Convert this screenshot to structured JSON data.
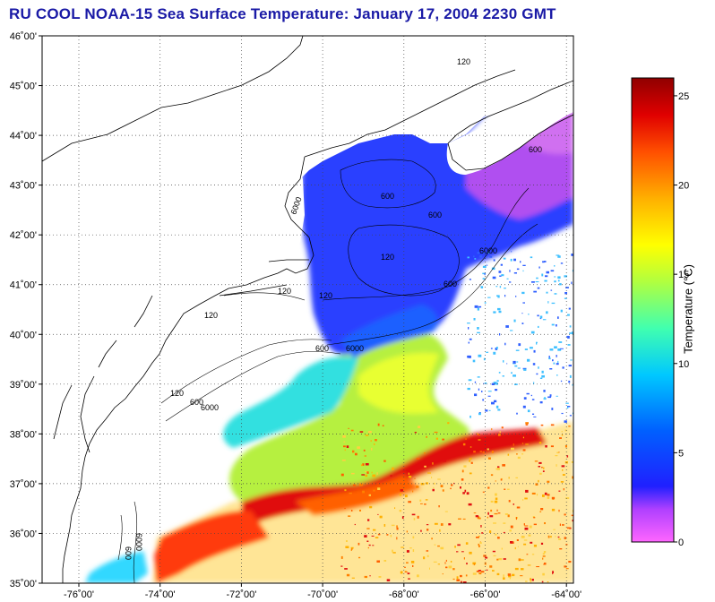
{
  "title": "RU COOL  NOAA-15  Sea Surface Temperature:  January 17, 2004 2230 GMT",
  "lat_labels": [
    "46˚00'",
    "45˚00'",
    "44˚00'",
    "43˚00'",
    "42˚00'",
    "41˚00'",
    "40˚00'",
    "39˚00'",
    "38˚00'",
    "37˚00'",
    "36˚00'",
    "35˚00'"
  ],
  "lon_labels": [
    "-76˚00'",
    "-74˚00'",
    "-72˚00'",
    "-70˚00'",
    "-68˚00'",
    "-66˚00'",
    "-64˚00'"
  ],
  "colorbar": {
    "title": "Temperature (°C)",
    "ticks": [
      "25",
      "20",
      "15",
      "10",
      "5",
      "0"
    ]
  },
  "contour_labels": {
    "c120": "120",
    "c600": "600",
    "c6000": "6000"
  },
  "colors": {
    "title": "#1a1aa6",
    "cold": "#ff44ee",
    "cool": "#1a2cff",
    "mid": "#a8f04a",
    "warm": "#ff6a00",
    "hot": "#e00000"
  }
}
